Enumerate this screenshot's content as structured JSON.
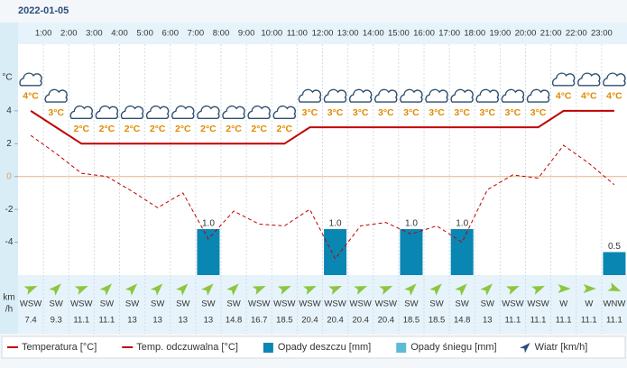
{
  "date": "2022-01-05",
  "chart_data": {
    "type": "line",
    "categories": [
      null,
      "1:00",
      "2:00",
      "3:00",
      "4:00",
      "5:00",
      "6:00",
      "7:00",
      "8:00",
      "9:00",
      "10:00",
      "11:00",
      "12:00",
      "13:00",
      "14:00",
      "15:00",
      "16:00",
      "17:00",
      "18:00",
      "19:00",
      "20:00",
      "21:00",
      "22:00",
      "23:00"
    ],
    "ylabel": "°C",
    "ylim": [
      -6,
      8
    ],
    "yticks": [
      -4,
      -2,
      0,
      2,
      4
    ],
    "y2lim": [
      0,
      5
    ],
    "series": [
      {
        "name": "Temperatura [°C]",
        "color": "#c00000",
        "dash": false,
        "values": [
          4,
          3,
          2,
          2,
          2,
          2,
          2,
          2,
          2,
          2,
          2,
          3,
          3,
          3,
          3,
          3,
          3,
          3,
          3,
          3,
          3,
          4,
          4,
          4
        ],
        "value_labels": [
          "4°C",
          "3°C",
          "2°C",
          "2°C",
          "2°C",
          "2°C",
          "2°C",
          "2°C",
          "2°C",
          "2°C",
          "2°C",
          "3°C",
          "3°C",
          "3°C",
          "3°C",
          "3°C",
          "3°C",
          "3°C",
          "3°C",
          "3°C",
          "3°C",
          "4°C",
          "4°C",
          "4°C"
        ]
      },
      {
        "name": "Temp. odczuwalna [°C]",
        "color": "#c00000",
        "dash": true,
        "values": [
          2.5,
          1.4,
          0.2,
          0,
          -0.9,
          -1.9,
          -1,
          -3.8,
          -2.1,
          -2.9,
          -3,
          -2,
          -5,
          -3,
          -2.8,
          -3.5,
          -3,
          -4,
          -0.8,
          0.1,
          -0.1,
          1.9,
          0.8,
          -0.5
        ]
      },
      {
        "name": "Opady deszczu [mm]",
        "color": "#0a86b3",
        "type": "bar",
        "axis": "y2",
        "values": [
          0,
          0,
          0,
          0,
          0,
          0,
          0,
          1.0,
          0,
          0,
          0,
          0,
          1.0,
          0,
          0,
          1.0,
          0,
          1.0,
          0,
          0,
          0,
          0,
          0,
          0.5
        ],
        "value_labels": [
          null,
          null,
          null,
          null,
          null,
          null,
          null,
          "1.0",
          null,
          null,
          null,
          null,
          "1.0",
          null,
          null,
          "1.0",
          null,
          "1.0",
          null,
          null,
          null,
          null,
          null,
          "0.5"
        ]
      },
      {
        "name": "Opady śniegu [mm]",
        "color": "#5bbcd6",
        "type": "bar",
        "axis": "y2",
        "values": [
          0,
          0,
          0,
          0,
          0,
          0,
          0,
          0,
          0,
          0,
          0,
          0,
          0,
          0,
          0,
          0,
          0,
          0,
          0,
          0,
          0,
          0,
          0,
          0
        ]
      }
    ],
    "wind": {
      "name": "Wiatr [km/h]",
      "axis_label": [
        "km",
        "/h"
      ],
      "color": "#8cc63f",
      "directions": [
        "WSW",
        "SW",
        "WSW",
        "SW",
        "SW",
        "SW",
        "SW",
        "SW",
        "SW",
        "WSW",
        "WSW",
        "WSW",
        "WSW",
        "WSW",
        "WSW",
        "SW",
        "SW",
        "SW",
        "SW",
        "WSW",
        "WSW",
        "W",
        "W",
        "WNW"
      ],
      "speeds": [
        7.4,
        9.3,
        11.1,
        11.1,
        13,
        13,
        13,
        13,
        14.8,
        16.7,
        18.5,
        20.4,
        20.4,
        20.4,
        20.4,
        18.5,
        18.5,
        14.8,
        13,
        11.1,
        11.1,
        11.1,
        11.1,
        11.1
      ]
    }
  }
}
